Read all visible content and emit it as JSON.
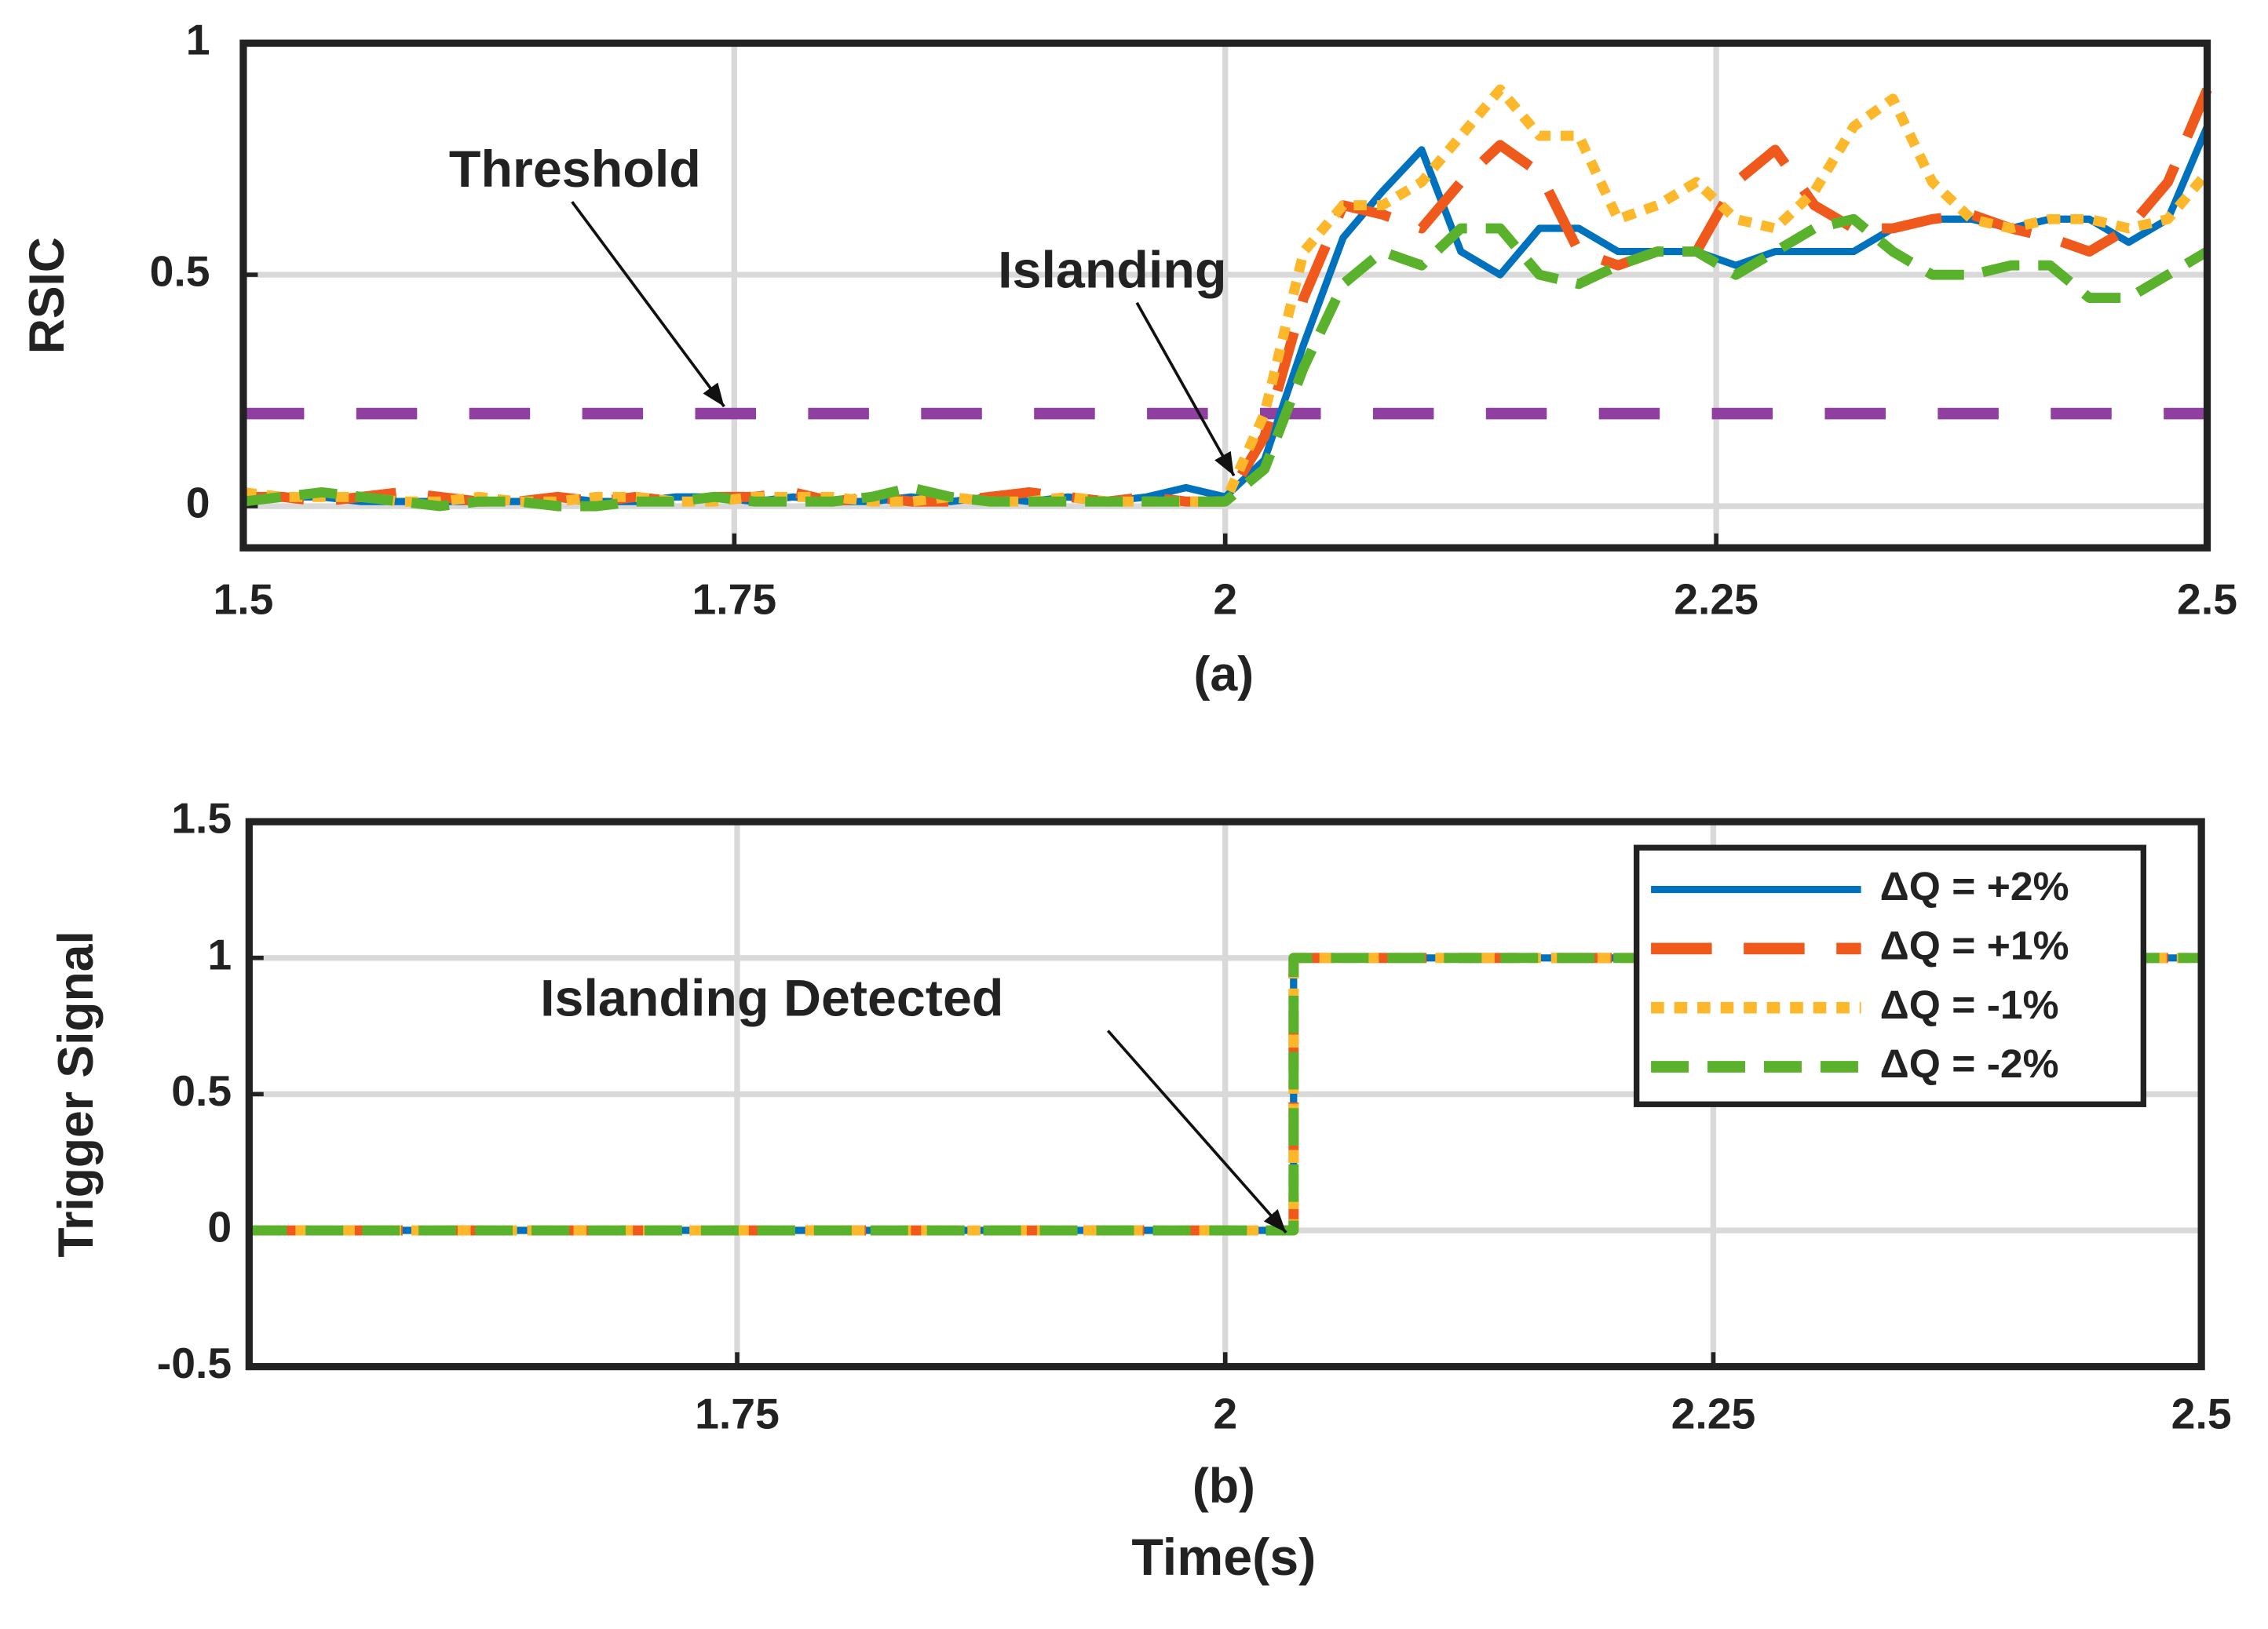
{
  "chart_data": [
    {
      "type": "line",
      "title": "(a)",
      "ylabel": "RSIC",
      "x": [
        1.5,
        1.52,
        1.54,
        1.56,
        1.58,
        1.6,
        1.62,
        1.64,
        1.66,
        1.68,
        1.7,
        1.72,
        1.74,
        1.76,
        1.78,
        1.8,
        1.82,
        1.84,
        1.86,
        1.88,
        1.9,
        1.92,
        1.94,
        1.96,
        1.98,
        2.0,
        2.02,
        2.04,
        2.06,
        2.08,
        2.1,
        2.12,
        2.14,
        2.16,
        2.18,
        2.2,
        2.22,
        2.24,
        2.26,
        2.28,
        2.3,
        2.32,
        2.34,
        2.36,
        2.38,
        2.4,
        2.42,
        2.44,
        2.46,
        2.48,
        2.5
      ],
      "series": [
        {
          "color": "#0072bd",
          "style": "solid",
          "values": [
            0.02,
            0.02,
            0.02,
            0.01,
            0.01,
            0.01,
            0.01,
            0.01,
            0.02,
            0.01,
            0.01,
            0.02,
            0.02,
            0.01,
            0.02,
            0.01,
            0.01,
            0.02,
            0.01,
            0.02,
            0.01,
            0.02,
            0.01,
            0.02,
            0.04,
            0.02,
            0.1,
            0.35,
            0.58,
            0.68,
            0.77,
            0.55,
            0.5,
            0.6,
            0.6,
            0.55,
            0.55,
            0.55,
            0.52,
            0.55,
            0.55,
            0.55,
            0.6,
            0.62,
            0.62,
            0.6,
            0.62,
            0.62,
            0.57,
            0.62,
            0.82
          ]
        },
        {
          "color": "#ef5a1c",
          "style": "dash",
          "values": [
            0.02,
            0.02,
            0.01,
            0.02,
            0.03,
            0.02,
            0.01,
            0.01,
            0.02,
            0.01,
            0.02,
            0.01,
            0.02,
            0.02,
            0.03,
            0.01,
            0.02,
            0.01,
            0.01,
            0.02,
            0.03,
            0.02,
            0.01,
            0.02,
            0.01,
            0.01,
            0.15,
            0.45,
            0.65,
            0.63,
            0.6,
            0.7,
            0.78,
            0.72,
            0.55,
            0.52,
            0.55,
            0.55,
            0.7,
            0.77,
            0.65,
            0.6,
            0.6,
            0.62,
            0.63,
            0.6,
            0.58,
            0.55,
            0.6,
            0.7,
            0.9
          ]
        },
        {
          "color": "#fdb72a",
          "style": "dot",
          "values": [
            0.03,
            0.02,
            0.02,
            0.02,
            0.01,
            0.01,
            0.02,
            0.01,
            0.01,
            0.02,
            0.02,
            0.01,
            0.01,
            0.02,
            0.02,
            0.02,
            0.01,
            0.01,
            0.02,
            0.01,
            0.01,
            0.02,
            0.01,
            0.01,
            0.01,
            0.01,
            0.2,
            0.55,
            0.65,
            0.65,
            0.7,
            0.8,
            0.9,
            0.8,
            0.8,
            0.62,
            0.65,
            0.7,
            0.62,
            0.6,
            0.68,
            0.82,
            0.88,
            0.7,
            0.62,
            0.6,
            0.62,
            0.62,
            0.6,
            0.62,
            0.72
          ]
        },
        {
          "color": "#5ab22c",
          "style": "dash2",
          "values": [
            0.01,
            0.02,
            0.03,
            0.02,
            0.01,
            0.0,
            0.01,
            0.01,
            0.0,
            0.0,
            0.01,
            0.01,
            0.02,
            0.01,
            0.01,
            0.01,
            0.02,
            0.04,
            0.02,
            0.01,
            0.01,
            0.01,
            0.01,
            0.01,
            0.01,
            0.01,
            0.08,
            0.3,
            0.48,
            0.55,
            0.52,
            0.6,
            0.6,
            0.5,
            0.48,
            0.52,
            0.55,
            0.55,
            0.5,
            0.55,
            0.6,
            0.62,
            0.55,
            0.5,
            0.5,
            0.52,
            0.52,
            0.45,
            0.45,
            0.5,
            0.55
          ]
        }
      ],
      "threshold": {
        "value": 0.2,
        "color": "#8e3fa0"
      },
      "xlim": [
        1.5,
        2.5
      ],
      "xticks": [
        1.5,
        1.75,
        2,
        2.25,
        2.5
      ],
      "ylim": [
        -0.09,
        1
      ],
      "yticks": [
        0,
        0.5,
        1
      ],
      "grid": true,
      "annotations": [
        "Threshold",
        "Islanding"
      ]
    },
    {
      "type": "line",
      "title": "(b)",
      "xlabel": "Time(s)",
      "ylabel": "Trigger Signal",
      "x": [
        1.5,
        2.035,
        2.035,
        2.5
      ],
      "series": [
        {
          "name": "ΔQ = +2%",
          "color": "#0072bd",
          "style": "solid",
          "values": [
            0,
            0,
            1,
            1
          ]
        },
        {
          "name": "ΔQ = +1%",
          "color": "#ef5a1c",
          "style": "dash",
          "values": [
            0,
            0,
            1,
            1
          ]
        },
        {
          "name": "ΔQ = -1%",
          "color": "#fdb72a",
          "style": "dot",
          "values": [
            0,
            0,
            1,
            1
          ]
        },
        {
          "name": "ΔQ = -2%",
          "color": "#5ab22c",
          "style": "dash2",
          "values": [
            0,
            0,
            1,
            1
          ]
        }
      ],
      "xlim": [
        1.5,
        2.5
      ],
      "xticks": [
        1.75,
        2,
        2.25,
        2.5
      ],
      "ylim": [
        -0.5,
        1.5
      ],
      "yticks": [
        -0.5,
        0,
        0.5,
        1,
        1.5
      ],
      "grid": true,
      "legend": "northeast",
      "annotations": [
        "Islanding Detected"
      ]
    }
  ]
}
